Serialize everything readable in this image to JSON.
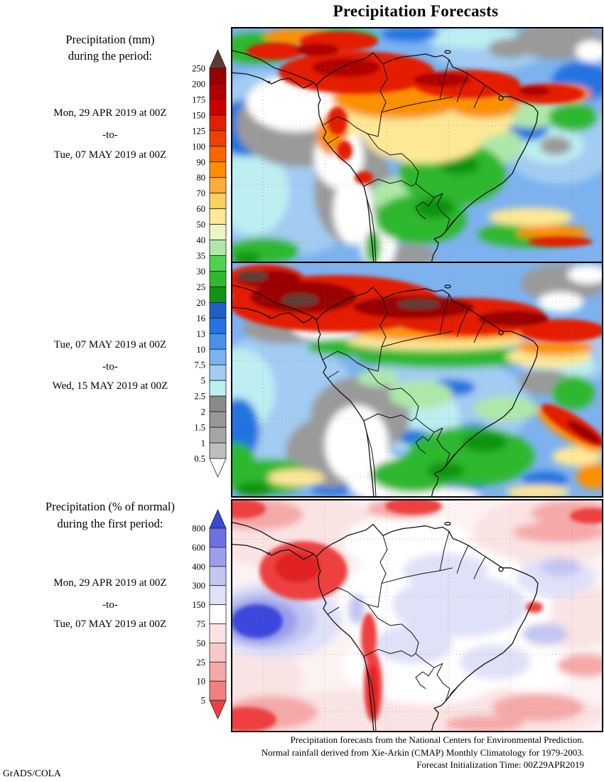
{
  "title": "Precipitation Forecasts",
  "credit": "GrADS/COLA",
  "panel1": {
    "heading_line1": "Precipitation (mm)",
    "heading_line2": "during the period:",
    "date_start": "Mon, 29 APR 2019 at 00Z",
    "date_sep": "-to-",
    "date_end": "Tue, 07 MAY 2019 at 00Z"
  },
  "panel2": {
    "date_start": "Tue, 07 MAY 2019 at 00Z",
    "date_sep": "-to-",
    "date_end": "Wed, 15 MAY 2019 at 00Z"
  },
  "panel3": {
    "heading_line1": "Precipitation (% of normal)",
    "heading_line2": "during the first period:",
    "date_start": "Mon, 29 APR 2019 at 00Z",
    "date_sep": "-to-",
    "date_end": "Tue, 07 MAY 2019 at 00Z"
  },
  "legend_mm": {
    "tick_labels": [
      "250",
      "200",
      "175",
      "150",
      "125",
      "100",
      "90",
      "80",
      "70",
      "60",
      "50",
      "40",
      "35",
      "30",
      "25",
      "20",
      "16",
      "13",
      "10",
      "7.5",
      "5",
      "2.5",
      "2",
      "1.5",
      "1",
      "0.5"
    ],
    "box_colors": [
      "#970000",
      "#b00000",
      "#ca0000",
      "#e41f00",
      "#f04000",
      "#fa6400",
      "#fc9000",
      "#fcae3c",
      "#fdd05e",
      "#fde896",
      "#ecf5c3",
      "#aee8a8",
      "#50d24e",
      "#2eb82e",
      "#109410",
      "#1e5fc8",
      "#2473e0",
      "#4a90e8",
      "#7cb2ef",
      "#a2ccf2",
      "#bceef2",
      "#8a8a8a",
      "#989898",
      "#a6a6a6",
      "#bebebe"
    ],
    "over_color": "#5e3c34",
    "under_color": "#ffffff"
  },
  "legend_pct": {
    "tick_labels": [
      "800",
      "600",
      "400",
      "300",
      "150",
      "75",
      "50",
      "25",
      "10",
      "5"
    ],
    "box_colors": [
      "#6b72e1",
      "#9a9fe9",
      "#c3c6f1",
      "#dfe1f8",
      "#ffffff",
      "#fae3e3",
      "#f7c8c8",
      "#f5a9a9",
      "#f28080"
    ],
    "over_color": "#3b46dd",
    "under_color": "#ee4040"
  },
  "captions": [
    "Precipitation forecasts from the National Centers for Environmental Prediction.",
    "Normal rainfall derived from Xie-Arkin (CMAP) Monthly Climatology for 1979-2003.",
    "Forecast Initialization Time: 00Z29APR2019"
  ],
  "chart_data": [
    {
      "type": "heatmap",
      "title": "Precipitation (mm) during the period Mon, 29 APR 2019 at 00Z to Tue, 07 MAY 2019 at 00Z",
      "region": "South America",
      "legend_values_mm": [
        250,
        200,
        175,
        150,
        125,
        100,
        90,
        80,
        70,
        60,
        50,
        40,
        35,
        30,
        25,
        20,
        16,
        13,
        10,
        7.5,
        5,
        2.5,
        2,
        1.5,
        1,
        0.5
      ],
      "legend_position": "left",
      "pattern": "heavy rain (100-250+ mm, red/orange) over Colombia, Venezuela, NW Amazon and Atlantic ITCZ; moderate rain (green/yellow) over central and SE Brazil; dry (white/gray, <2.5 mm) over SE Pacific, Peru-Chile coast and Argentina"
    },
    {
      "type": "heatmap",
      "title": "Precipitation (mm) during the period Tue, 07 MAY 2019 at 00Z to Wed, 15 MAY 2019 at 00Z",
      "region": "South America",
      "legend_values_mm": [
        250,
        200,
        175,
        150,
        125,
        100,
        90,
        80,
        70,
        60,
        50,
        40,
        35,
        30,
        25,
        20,
        16,
        13,
        10,
        7.5,
        5,
        2.5,
        2,
        1.5,
        1,
        0.5
      ],
      "legend_position": "left",
      "pattern": "intense ITCZ band (200-250+ mm, dark red) across northern South America and tropical Atlantic; light-moderate rain (blue/cyan/green) over central Brazil and the south; dry (white/gray) over Peru, Bolivia, Chile and Argentina"
    },
    {
      "type": "heatmap",
      "title": "Precipitation (% of normal) during the first period Mon, 29 APR 2019 at 00Z to Tue, 07 MAY 2019 at 00Z",
      "region": "South America",
      "legend_values_percent": [
        800,
        600,
        400,
        300,
        150,
        75,
        50,
        25,
        10,
        5
      ],
      "legend_position": "left",
      "pattern": "near-normal (white, 75-150%) over most of the continent; far above normal (blue, >300%) blob in SE Pacific; far below normal (red, <10%) west of Peru, along the Andes/Chile strip and in band areas at the map edges"
    }
  ]
}
